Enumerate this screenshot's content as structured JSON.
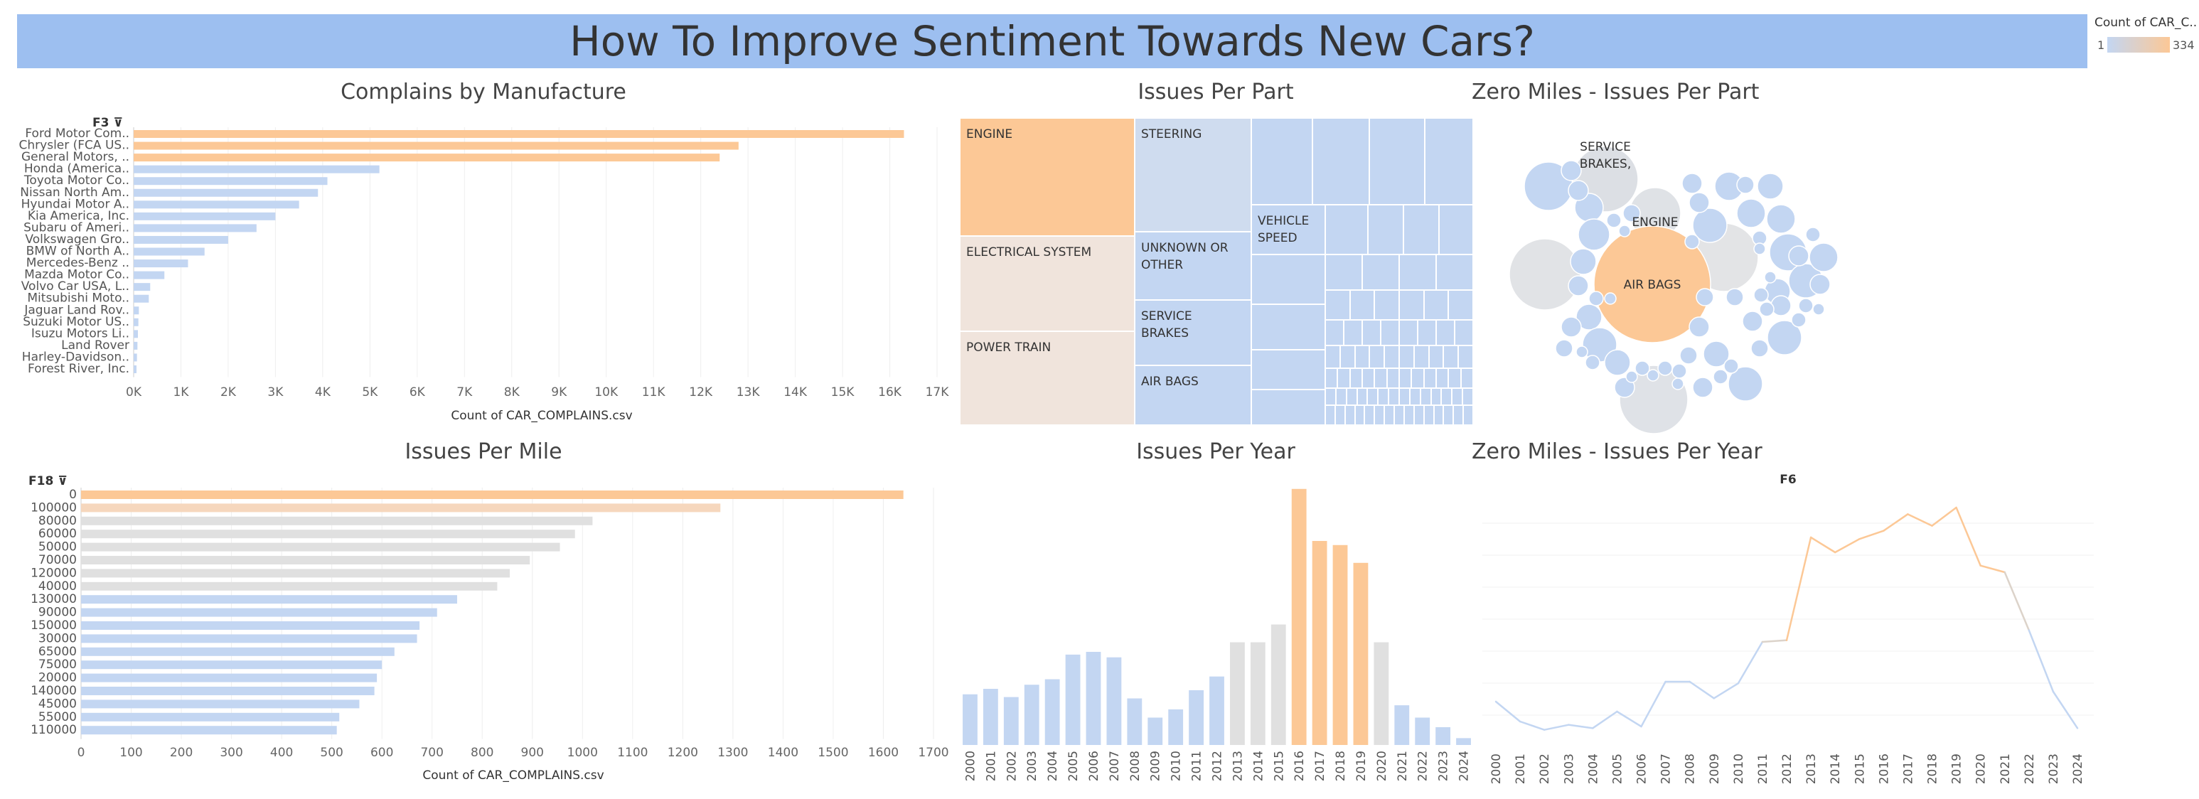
{
  "title": "How To Improve Sentiment Towards New Cars?",
  "colors": {
    "orange": "#fcc896",
    "orange_light": "#f6d7bd",
    "blue": "#c3d6f2",
    "gray": "#e0e0e0",
    "beige": "#f0e4dc",
    "banner": "#9dbff0"
  },
  "legend": {
    "title": "Count of CAR_C..",
    "min": "1",
    "max": "334"
  },
  "chart_data": [
    {
      "id": "manufacturer",
      "type": "bar",
      "orientation": "horizontal",
      "title": "Complains by Manufacture",
      "dimension_header": "F3",
      "xlabel": "Count of CAR_COMPLAINS.csv",
      "ticks": [
        "0K",
        "1K",
        "2K",
        "3K",
        "4K",
        "5K",
        "6K",
        "7K",
        "8K",
        "9K",
        "10K",
        "11K",
        "12K",
        "13K",
        "14K",
        "15K",
        "16K",
        "17K"
      ],
      "xlim": [
        0,
        17000
      ],
      "categories": [
        "Ford Motor Com..",
        "Chrysler (FCA US..",
        "General Motors, ..",
        "Honda (America..",
        "Toyota Motor Co..",
        "Nissan North Am..",
        "Hyundai Motor A..",
        "Kia America, Inc.",
        "Subaru of Ameri..",
        "Volkswagen Gro..",
        "BMW of North A..",
        "Mercedes-Benz ..",
        "Mazda Motor Co..",
        "Volvo Car USA, L..",
        "Mitsubishi Moto..",
        "Jaguar Land Rov..",
        "Suzuki Motor US..",
        "Isuzu Motors Li..",
        "Land Rover",
        "Harley-Davidson..",
        "Forest River, Inc."
      ],
      "values": [
        16300,
        12800,
        12400,
        5200,
        4100,
        3900,
        3500,
        3000,
        2600,
        2000,
        1500,
        1150,
        650,
        350,
        320,
        110,
        100,
        90,
        80,
        70,
        60
      ],
      "colors": [
        "orange",
        "orange",
        "orange",
        "blue",
        "blue",
        "blue",
        "blue",
        "blue",
        "blue",
        "blue",
        "blue",
        "blue",
        "blue",
        "blue",
        "blue",
        "blue",
        "blue",
        "blue",
        "blue",
        "blue",
        "blue"
      ]
    },
    {
      "id": "treemap",
      "type": "treemap",
      "title": "Issues Per Part",
      "labeled_cells": [
        "ENGINE",
        "ELECTRICAL SYSTEM",
        "POWER TRAIN",
        "STEERING",
        "UNKNOWN OR OTHER",
        "SERVICE BRAKES",
        "AIR BAGS",
        "VEHICLE SPEED"
      ]
    },
    {
      "id": "bubbles",
      "type": "packed-bubble",
      "title": "Zero Miles - Issues Per Part",
      "labeled_bubbles": [
        "SERVICE BRAKES,",
        "ENGINE",
        "AIR BAGS"
      ]
    },
    {
      "id": "miles",
      "type": "bar",
      "orientation": "horizontal",
      "title": "Issues Per Mile",
      "dimension_header": "F18",
      "xlabel": "Count of CAR_COMPLAINS.csv",
      "ticks": [
        "0",
        "100",
        "200",
        "300",
        "400",
        "500",
        "600",
        "700",
        "800",
        "900",
        "1000",
        "1100",
        "1200",
        "1300",
        "1400",
        "1500",
        "1600",
        "1700"
      ],
      "xlim": [
        0,
        1700
      ],
      "categories": [
        "0",
        "100000",
        "80000",
        "60000",
        "50000",
        "70000",
        "120000",
        "40000",
        "130000",
        "90000",
        "150000",
        "30000",
        "65000",
        "75000",
        "20000",
        "140000",
        "45000",
        "55000",
        "110000"
      ],
      "values": [
        1640,
        1275,
        1020,
        985,
        955,
        895,
        855,
        830,
        750,
        710,
        675,
        670,
        625,
        600,
        590,
        585,
        555,
        515,
        510
      ],
      "colors": [
        "orange",
        "orange_light",
        "gray",
        "gray",
        "gray",
        "gray",
        "gray",
        "gray",
        "blue",
        "blue",
        "blue",
        "blue",
        "blue",
        "blue",
        "blue",
        "blue",
        "blue",
        "blue",
        "blue"
      ]
    },
    {
      "id": "years",
      "type": "bar",
      "title": "Issues Per Year",
      "categories": [
        "2000",
        "2001",
        "2002",
        "2003",
        "2004",
        "2005",
        "2006",
        "2007",
        "2008",
        "2009",
        "2010",
        "2011",
        "2012",
        "2013",
        "2014",
        "2015",
        "2016",
        "2017",
        "2018",
        "2019",
        "2020",
        "2021",
        "2022",
        "2023",
        "2024"
      ],
      "values": [
        185,
        205,
        175,
        220,
        240,
        330,
        340,
        320,
        170,
        100,
        130,
        200,
        250,
        375,
        375,
        440,
        935,
        745,
        730,
        665,
        375,
        145,
        100,
        65,
        25
      ],
      "colors": [
        "blue",
        "blue",
        "blue",
        "blue",
        "blue",
        "blue",
        "blue",
        "blue",
        "blue",
        "blue",
        "blue",
        "blue",
        "blue",
        "gray",
        "gray",
        "gray",
        "orange",
        "orange",
        "orange",
        "orange",
        "gray",
        "blue",
        "blue",
        "blue",
        "blue"
      ],
      "ylim": [
        0,
        950
      ]
    },
    {
      "id": "zero_years",
      "type": "line",
      "title": "Zero Miles - Issues Per Year",
      "dimension_header": "F6",
      "x": [
        "2000",
        "2001",
        "2002",
        "2003",
        "2004",
        "2005",
        "2006",
        "2007",
        "2008",
        "2009",
        "2010",
        "2011",
        "2012",
        "2013",
        "2014",
        "2015",
        "2016",
        "2017",
        "2018",
        "2019",
        "2020",
        "2021",
        "2022",
        "2023",
        "2024"
      ],
      "y": [
        72,
        60,
        55,
        58,
        56,
        66,
        57,
        84,
        84,
        74,
        83,
        108,
        109,
        171,
        162,
        170,
        175,
        185,
        178,
        189,
        154,
        150,
        115,
        78,
        56
      ],
      "ylim": [
        45,
        195
      ]
    }
  ]
}
